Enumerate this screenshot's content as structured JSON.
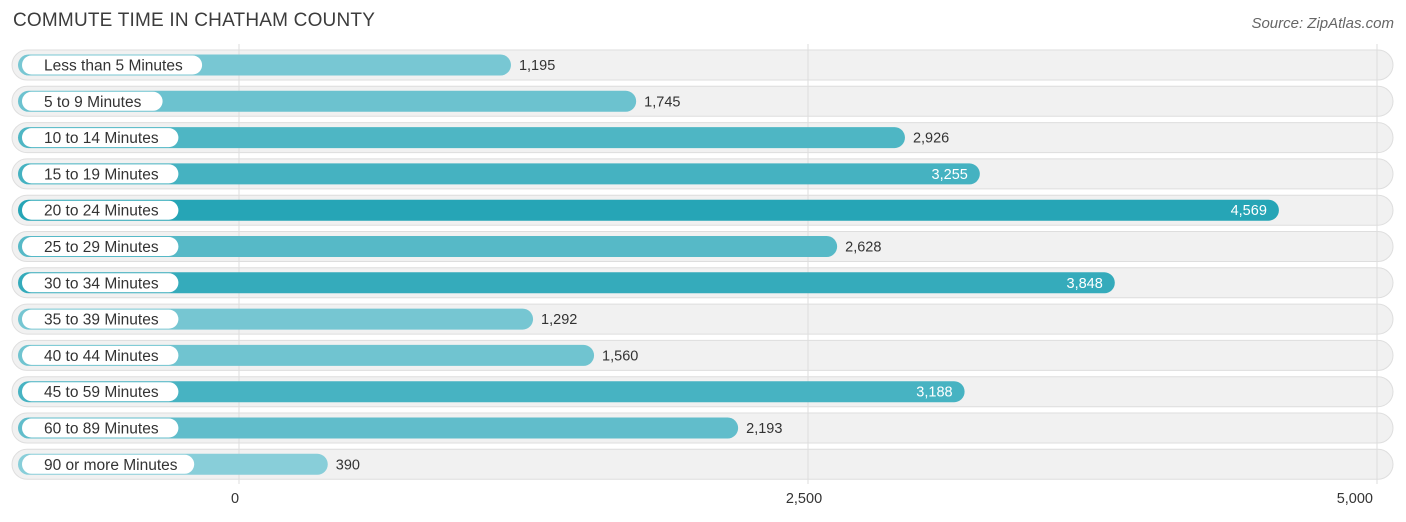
{
  "chart_data": {
    "type": "bar",
    "orientation": "horizontal",
    "title": "COMMUTE TIME IN CHATHAM COUNTY",
    "source": "Source: ZipAtlas.com",
    "categories": [
      "Less than 5 Minutes",
      "5 to 9 Minutes",
      "10 to 14 Minutes",
      "15 to 19 Minutes",
      "20 to 24 Minutes",
      "25 to 29 Minutes",
      "30 to 34 Minutes",
      "35 to 39 Minutes",
      "40 to 44 Minutes",
      "45 to 59 Minutes",
      "60 to 89 Minutes",
      "90 or more Minutes"
    ],
    "values": [
      1195,
      1745,
      2926,
      3255,
      4569,
      2628,
      3848,
      1292,
      1560,
      3188,
      2193,
      390
    ],
    "value_labels": [
      "1,195",
      "1,745",
      "2,926",
      "3,255",
      "4,569",
      "2,628",
      "3,848",
      "1,292",
      "1,560",
      "3,188",
      "2,193",
      "390"
    ],
    "xlim": [
      0,
      5000
    ],
    "xticks": [
      0,
      2500,
      5000
    ],
    "xtick_labels": [
      "0",
      "2,500",
      "5,000"
    ],
    "grid": true,
    "colors": {
      "bar_light": "#8ed0db",
      "bar_dark": "#26a5b6",
      "track": "#f1f1f1",
      "track_border": "#dedede",
      "grid": "#dddddd",
      "label_text": "#333333",
      "value_text": "#333333",
      "value_text_inside": "#ffffff"
    }
  }
}
